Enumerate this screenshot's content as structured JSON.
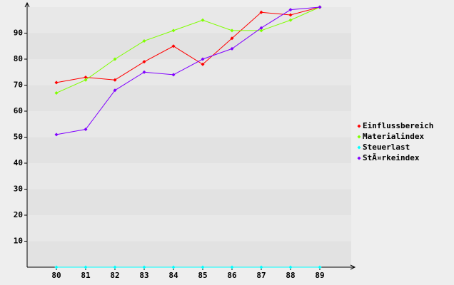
{
  "chart_data": {
    "type": "line",
    "categories": [
      "80",
      "81",
      "82",
      "83",
      "84",
      "85",
      "86",
      "87",
      "88",
      "89"
    ],
    "series": [
      {
        "name": "Einflussbereich",
        "color": "#ff0000",
        "values": [
          71,
          73,
          72,
          79,
          85,
          78,
          88,
          98,
          97,
          100
        ]
      },
      {
        "name": "Materialindex",
        "color": "#80ff00",
        "values": [
          67,
          72,
          80,
          87,
          91,
          95,
          91,
          91,
          95,
          100
        ]
      },
      {
        "name": "Steuerlast",
        "color": "#00ffff",
        "values": [
          0,
          0,
          0,
          0,
          0,
          0,
          0,
          0,
          0,
          0
        ]
      },
      {
        "name": "StÃ¤rkeindex",
        "color": "#8000ff",
        "values": [
          51,
          53,
          68,
          75,
          74,
          80,
          84,
          92,
          99,
          100
        ]
      }
    ],
    "ylim": [
      0,
      100
    ],
    "yticks": [
      10,
      20,
      30,
      40,
      50,
      60,
      70,
      80,
      90
    ],
    "grid": true,
    "legend": "right"
  }
}
